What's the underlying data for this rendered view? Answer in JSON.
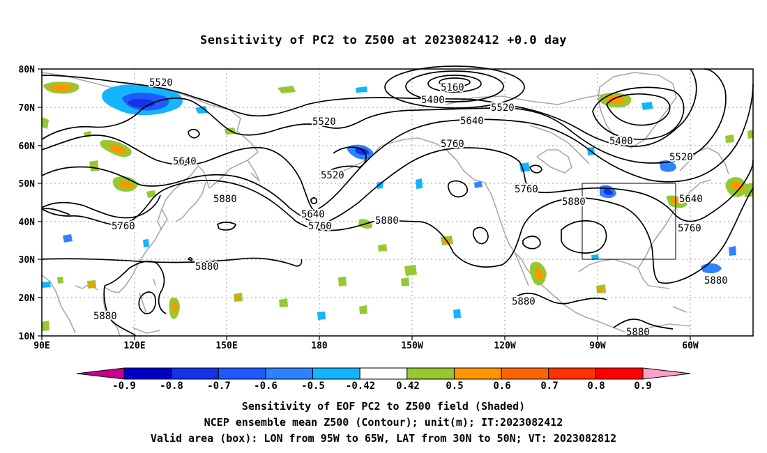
{
  "title": "Sensitivity of PC2 to Z500 at 2023082412 +0.0 day",
  "map": {
    "lat_labels": [
      "80N",
      "70N",
      "60N",
      "50N",
      "40N",
      "30N",
      "20N",
      "10N"
    ],
    "lon_labels": [
      "90E",
      "120E",
      "150E",
      "180",
      "150W",
      "120W",
      "90W",
      "60W"
    ],
    "contour_labels": [
      {
        "text": "5520"
      },
      {
        "text": "5160"
      },
      {
        "text": "5400"
      },
      {
        "text": "5520"
      },
      {
        "text": "5520"
      },
      {
        "text": "5640"
      },
      {
        "text": "5760"
      },
      {
        "text": "5400"
      },
      {
        "text": "5520"
      },
      {
        "text": "5640"
      },
      {
        "text": "5520"
      },
      {
        "text": "5760"
      },
      {
        "text": "5880"
      },
      {
        "text": "5880"
      },
      {
        "text": "5640"
      },
      {
        "text": "5760"
      },
      {
        "text": "5640"
      },
      {
        "text": "5760"
      },
      {
        "text": "5880"
      },
      {
        "text": "5760"
      },
      {
        "text": "5880"
      },
      {
        "text": "5880"
      },
      {
        "text": "5880"
      },
      {
        "text": "5880"
      },
      {
        "text": "5880"
      }
    ],
    "valid_box": {
      "lon_from": "95W",
      "lon_to": "65W",
      "lat_from": "30N",
      "lat_to": "50N"
    }
  },
  "colorbar": {
    "labels": [
      "-0.9",
      "-0.8",
      "-0.7",
      "-0.6",
      "-0.5",
      "-0.42",
      "0.42",
      "0.5",
      "0.6",
      "0.7",
      "0.8",
      "0.9"
    ],
    "colors": [
      "#0000c8",
      "#1432e6",
      "#1e5aff",
      "#2d82ff",
      "#14b4ff",
      "#ffffff",
      "#96c832",
      "#ff9600",
      "#ff6400",
      "#ff3200",
      "#ff0000"
    ],
    "low_end_color": "#c8008c",
    "high_end_color": "#ffa0c8"
  },
  "captions": {
    "line1": "Sensitivity of EOF PC2 to Z500 field (Shaded)",
    "line2": "NCEP ensemble mean Z500 (Contour); unit(m); IT:2023082412",
    "line3": "Valid area (box): LON from 95W to 65W, LAT from 30N to 50N; VT: 2023082812"
  }
}
